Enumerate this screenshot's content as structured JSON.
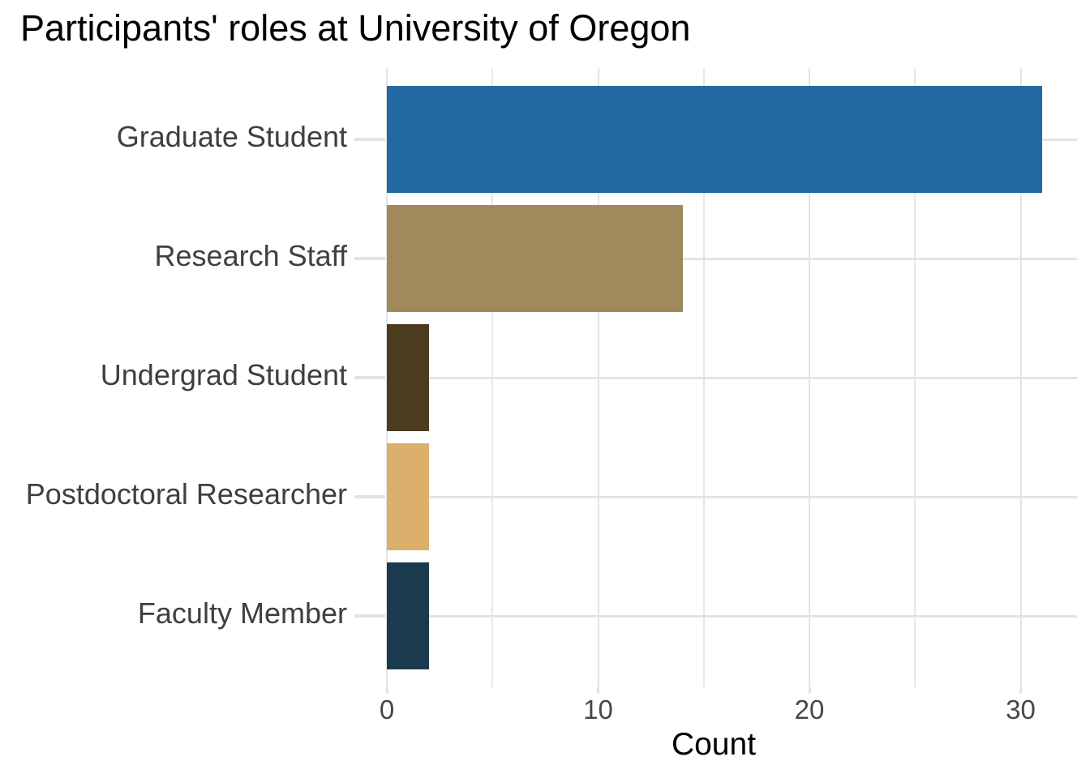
{
  "chart_data": {
    "type": "bar",
    "orientation": "horizontal",
    "title": "Participants' roles at University of Oregon",
    "xlabel": "Count",
    "ylabel": "",
    "categories": [
      "Graduate Student",
      "Research Staff",
      "Undergrad Student",
      "Postdoctoral Researcher",
      "Faculty Member"
    ],
    "values": [
      31,
      14,
      2,
      2,
      2
    ],
    "bar_colors": [
      "#2368A2",
      "#A08A5C",
      "#4C3B1E",
      "#DCB06C",
      "#1B3A4E"
    ],
    "x_major_ticks": [
      0,
      10,
      20,
      30
    ],
    "x_minor_ticks": [
      5,
      15,
      25
    ],
    "xlim": [
      0,
      32.7
    ],
    "grid": true,
    "legend": false,
    "background_color": "#FFFFFF",
    "gridline_color": "#E4E4E4",
    "tick_mark_color": "#E3E3E3",
    "axis_text_color": "#474747",
    "category_text_color": "#3F3F3F",
    "title_color": "#000000"
  }
}
